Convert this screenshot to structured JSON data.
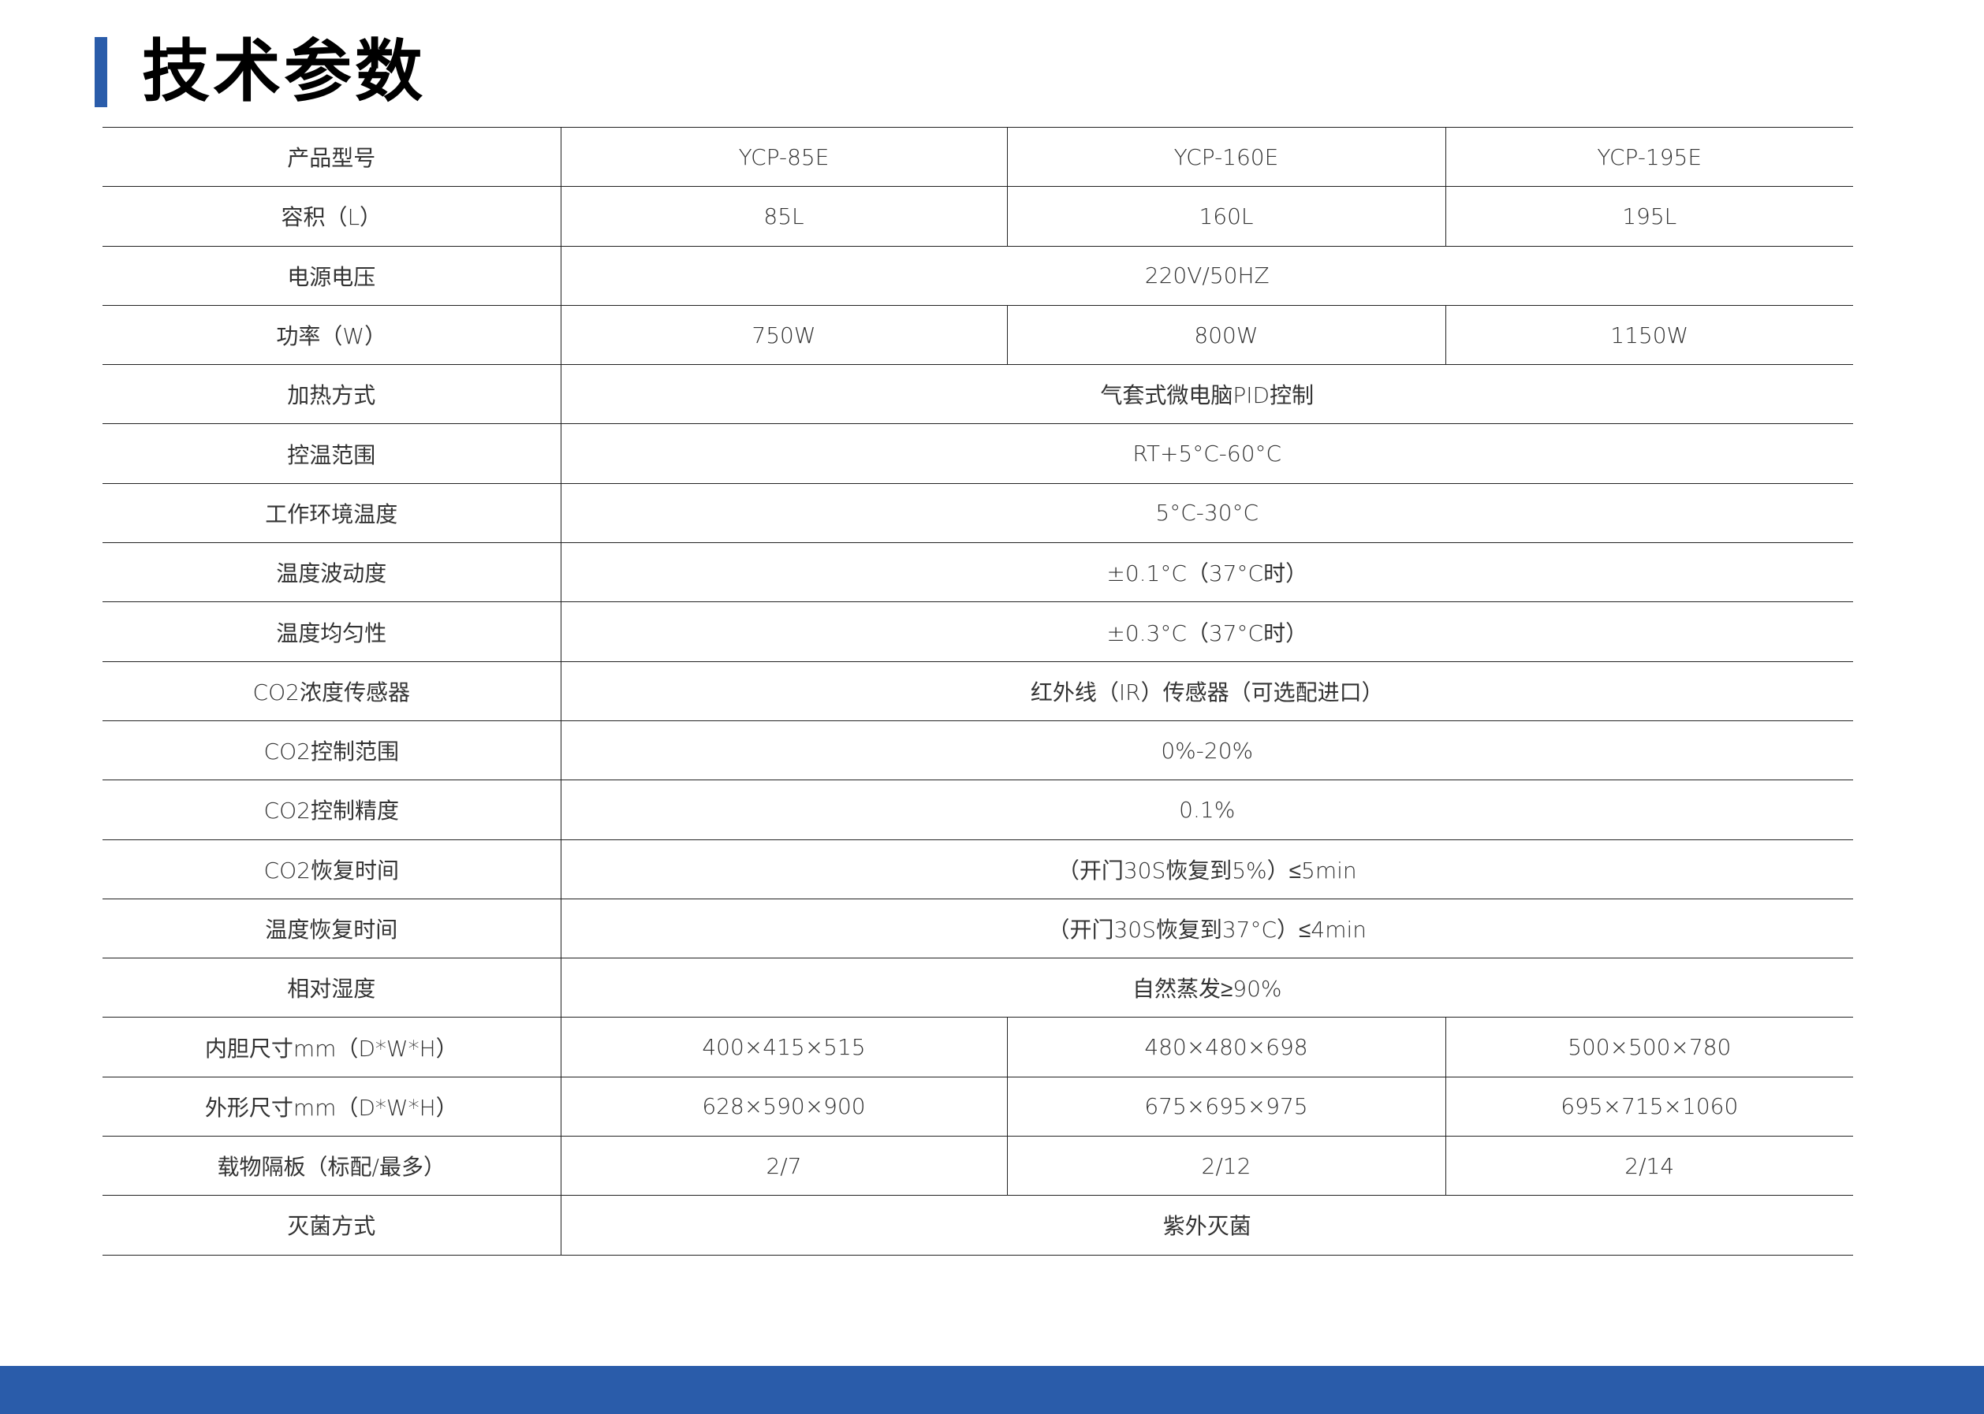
{
  "title": "技术参数",
  "accent_color": "#2a5caa",
  "table": {
    "rows": [
      {
        "label": "产品型号",
        "values": [
          "YCP-85E",
          "YCP-160E",
          "YCP-195E"
        ]
      },
      {
        "label": "容积（L）",
        "values": [
          "85L",
          "160L",
          "195L"
        ]
      },
      {
        "label": "电源电压",
        "values": [
          "220V/50HZ"
        ]
      },
      {
        "label": "功率（W）",
        "values": [
          "750W",
          "800W",
          "1150W"
        ]
      },
      {
        "label": "加热方式",
        "values": [
          "气套式微电脑PID控制"
        ]
      },
      {
        "label": "控温范围",
        "values": [
          "RT+5°C-60°C"
        ]
      },
      {
        "label": "工作环境温度",
        "values": [
          "5°C-30°C"
        ]
      },
      {
        "label": "温度波动度",
        "values": [
          "±0.1°C（37°C时）"
        ]
      },
      {
        "label": "温度均匀性",
        "values": [
          "±0.3°C（37°C时）"
        ]
      },
      {
        "label": "CO2浓度传感器",
        "values": [
          "红外线（IR）传感器（可选配进口）"
        ]
      },
      {
        "label": "CO2控制范围",
        "values": [
          "0%-20%"
        ]
      },
      {
        "label": "CO2控制精度",
        "values": [
          "0.1%"
        ]
      },
      {
        "label": "CO2恢复时间",
        "values": [
          "（开门30S恢复到5%）≤5min"
        ]
      },
      {
        "label": "温度恢复时间",
        "values": [
          "（开门30S恢复到37°C）≤4min"
        ]
      },
      {
        "label": "相对湿度",
        "values": [
          "自然蒸发≥90%"
        ]
      },
      {
        "label": "内胆尺寸mm（D*W*H）",
        "values": [
          "400×415×515",
          "480×480×698",
          "500×500×780"
        ]
      },
      {
        "label": "外形尺寸mm（D*W*H）",
        "values": [
          "628×590×900",
          "675×695×975",
          "695×715×1060"
        ]
      },
      {
        "label": "载物隔板（标配/最多）",
        "values": [
          "2/7",
          "2/12",
          "2/14"
        ]
      },
      {
        "label": "灭菌方式",
        "values": [
          "紫外灭菌"
        ]
      }
    ]
  }
}
